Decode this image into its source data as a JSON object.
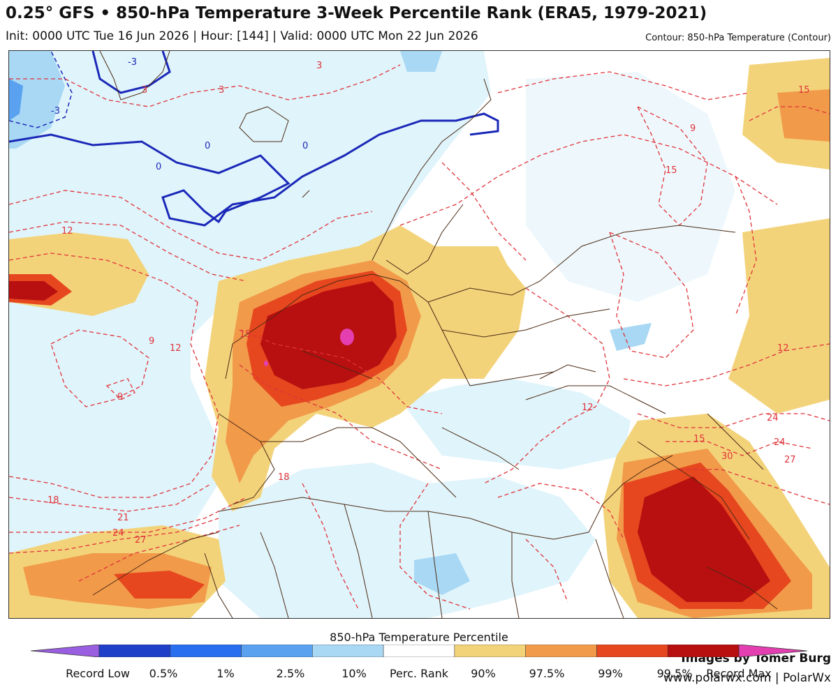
{
  "header": {
    "title": "0.25° GFS • 850-hPa Temperature 3-Week Percentile Rank (ERA5, 1979-2021)",
    "subtitle": "Init: 0000 UTC Tue 16 Jun 2026 | Hour: [144] | Valid: 0000 UTC Mon 22 Jun 2026",
    "contour_note": "Contour: 850-hPa Temperature (Contour)"
  },
  "map": {
    "region": "Europe, North Africa, Middle East",
    "contour_labels": [
      "-3",
      "-3",
      "3",
      "0",
      "0",
      "0",
      "3",
      "3",
      "9",
      "12",
      "12",
      "9",
      "9",
      "15",
      "15",
      "15",
      "12",
      "18",
      "21",
      "24",
      "27",
      "12",
      "15",
      "24",
      "24",
      "27",
      "30",
      "18"
    ],
    "credit_line1": "Images by Tomer Burg",
    "credit_line2": "www.polarwx.com | PolarWx"
  },
  "legend": {
    "title": "850-hPa Temperature Percentile",
    "labels": [
      "Record Low",
      "0.5%",
      "1%",
      "2.5%",
      "10%",
      "Perc. Rank",
      "90%",
      "97.5%",
      "99%",
      "99.5%",
      "Record Max"
    ],
    "colors": [
      "#9a5fe0",
      "#1f3fc8",
      "#2a6ef0",
      "#5aa2f0",
      "#a8d8f4",
      "#ffffff",
      "#f3d37a",
      "#f19a4a",
      "#e6471f",
      "#b80f10",
      "#e33fb0"
    ],
    "low_arrow_color": "#9a5fe0",
    "high_arrow_color": "#e33fb0"
  },
  "colors": {
    "cold_fill": "#e0f4fb",
    "p10_fill": "#a8d8f4",
    "warm_fill": "#f3d37a",
    "warmer_fill": "#f19a4a",
    "hot_fill": "#e6471f",
    "hotter_fill": "#b80f10",
    "record_fill": "#e33fb0",
    "contour_warm": "#e0333a",
    "contour_cold": "#1a28b8",
    "border": "#4a2a14"
  }
}
